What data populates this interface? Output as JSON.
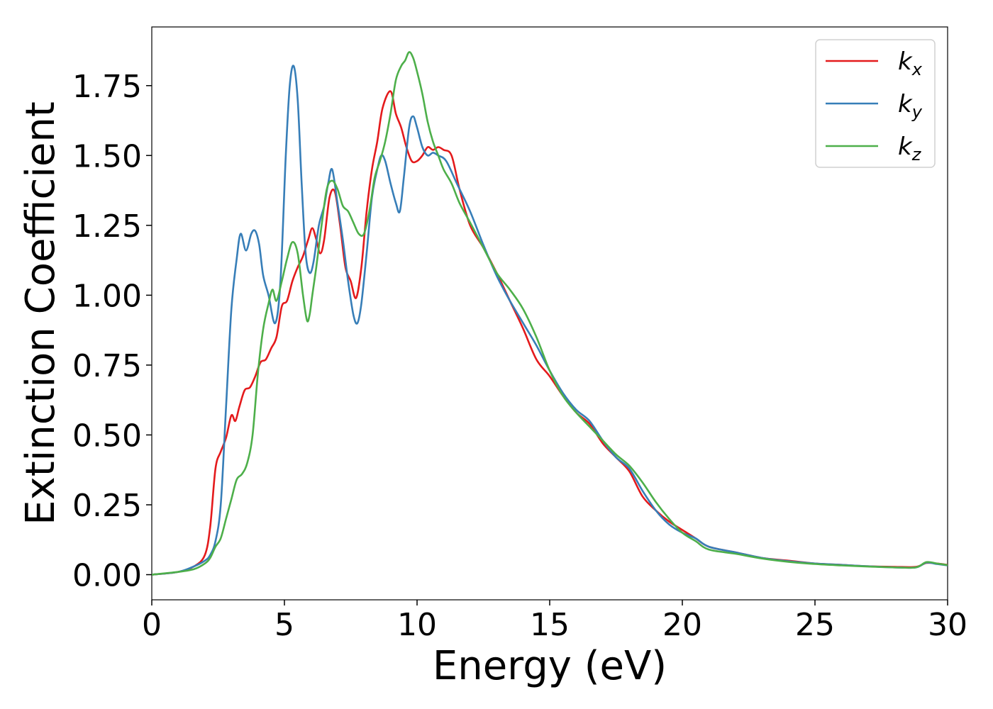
{
  "chart_data": {
    "type": "line",
    "title": "",
    "xlabel": "Energy (eV)",
    "ylabel": "Extinction Coefficient",
    "xlim": [
      0,
      30
    ],
    "ylim": [
      -0.09,
      1.96
    ],
    "xticks": [
      0,
      5,
      10,
      15,
      20,
      25,
      30
    ],
    "xtick_labels": [
      "0",
      "5",
      "10",
      "15",
      "20",
      "25",
      "30"
    ],
    "yticks": [
      0,
      0.25,
      0.5,
      0.75,
      1.0,
      1.25,
      1.5,
      1.75
    ],
    "ytick_labels": [
      "0.00",
      "0.25",
      "0.50",
      "0.75",
      "1.00",
      "1.25",
      "1.50",
      "1.75"
    ],
    "grid": false,
    "legend_position": "top-right",
    "series": [
      {
        "name": "k_x",
        "label_base": "k",
        "label_sub": "x",
        "color": "#e41a1c",
        "x": [
          0,
          1,
          1.6,
          2.0,
          2.2,
          2.4,
          2.6,
          2.8,
          3.0,
          3.15,
          3.3,
          3.5,
          3.7,
          3.9,
          4.1,
          4.3,
          4.5,
          4.7,
          4.9,
          5.1,
          5.3,
          5.5,
          5.7,
          5.9,
          6.05,
          6.2,
          6.35,
          6.5,
          6.7,
          6.9,
          7.1,
          7.3,
          7.5,
          7.7,
          7.9,
          8.1,
          8.3,
          8.5,
          8.7,
          9.0,
          9.2,
          9.4,
          9.6,
          9.8,
          10.0,
          10.2,
          10.4,
          10.6,
          10.8,
          11.0,
          11.3,
          11.6,
          12.0,
          12.5,
          13.0,
          13.5,
          14.0,
          14.5,
          15.0,
          15.5,
          16.0,
          16.5,
          17.0,
          17.5,
          18.0,
          18.5,
          19.0,
          19.5,
          20.0,
          20.5,
          21.0,
          22.0,
          23.0,
          24.0,
          25.0,
          26.0,
          27.0,
          28.0,
          28.8,
          29.2,
          29.6,
          30.0
        ],
        "y": [
          0.0,
          0.01,
          0.03,
          0.07,
          0.17,
          0.38,
          0.44,
          0.49,
          0.57,
          0.55,
          0.6,
          0.66,
          0.67,
          0.71,
          0.76,
          0.77,
          0.81,
          0.85,
          0.96,
          0.98,
          1.05,
          1.1,
          1.14,
          1.2,
          1.24,
          1.2,
          1.15,
          1.2,
          1.35,
          1.37,
          1.25,
          1.1,
          1.05,
          0.99,
          1.1,
          1.3,
          1.45,
          1.55,
          1.67,
          1.73,
          1.65,
          1.6,
          1.53,
          1.48,
          1.48,
          1.5,
          1.53,
          1.52,
          1.53,
          1.52,
          1.5,
          1.38,
          1.25,
          1.17,
          1.08,
          0.98,
          0.88,
          0.77,
          0.71,
          0.64,
          0.58,
          0.54,
          0.47,
          0.42,
          0.37,
          0.28,
          0.23,
          0.19,
          0.16,
          0.13,
          0.1,
          0.08,
          0.06,
          0.05,
          0.04,
          0.035,
          0.03,
          0.028,
          0.028,
          0.042,
          0.04,
          0.035
        ]
      },
      {
        "name": "k_y",
        "label_base": "k",
        "label_sub": "y",
        "color": "#377eb8",
        "x": [
          0,
          1,
          1.6,
          2.0,
          2.2,
          2.4,
          2.6,
          2.8,
          3.0,
          3.2,
          3.35,
          3.55,
          3.75,
          3.9,
          4.05,
          4.2,
          4.4,
          4.65,
          4.85,
          5.05,
          5.2,
          5.35,
          5.5,
          5.65,
          5.8,
          5.95,
          6.1,
          6.3,
          6.5,
          6.65,
          6.8,
          7.0,
          7.2,
          7.4,
          7.6,
          7.75,
          7.9,
          8.1,
          8.3,
          8.5,
          8.65,
          8.8,
          9.0,
          9.2,
          9.35,
          9.5,
          9.7,
          9.85,
          10.0,
          10.2,
          10.4,
          10.6,
          10.8,
          11.1,
          11.5,
          12.0,
          12.5,
          13.0,
          13.5,
          14.0,
          14.5,
          15.0,
          15.5,
          16.0,
          16.5,
          17.0,
          17.5,
          18.0,
          18.5,
          19.0,
          19.5,
          20.0,
          20.5,
          21.0,
          22.0,
          23.0,
          24.0,
          25.0,
          26.0,
          27.0,
          28.0,
          28.8,
          29.2,
          29.6,
          30.0
        ],
        "y": [
          0.0,
          0.01,
          0.03,
          0.05,
          0.07,
          0.12,
          0.25,
          0.6,
          0.95,
          1.13,
          1.22,
          1.16,
          1.22,
          1.23,
          1.18,
          1.07,
          1.0,
          0.9,
          1.05,
          1.5,
          1.75,
          1.82,
          1.7,
          1.4,
          1.15,
          1.08,
          1.12,
          1.25,
          1.32,
          1.4,
          1.45,
          1.33,
          1.2,
          1.05,
          0.93,
          0.9,
          0.97,
          1.15,
          1.35,
          1.45,
          1.5,
          1.48,
          1.4,
          1.33,
          1.3,
          1.42,
          1.6,
          1.64,
          1.6,
          1.53,
          1.5,
          1.51,
          1.5,
          1.48,
          1.4,
          1.3,
          1.18,
          1.07,
          0.98,
          0.9,
          0.82,
          0.73,
          0.65,
          0.59,
          0.55,
          0.48,
          0.42,
          0.38,
          0.3,
          0.23,
          0.18,
          0.15,
          0.13,
          0.1,
          0.08,
          0.06,
          0.048,
          0.04,
          0.035,
          0.03,
          0.026,
          0.026,
          0.043,
          0.038,
          0.033
        ]
      },
      {
        "name": "k_z",
        "label_base": "k",
        "label_sub": "z",
        "color": "#4daf4a",
        "x": [
          0,
          1,
          1.6,
          2.0,
          2.2,
          2.4,
          2.6,
          2.8,
          3.0,
          3.2,
          3.4,
          3.6,
          3.8,
          4.0,
          4.2,
          4.4,
          4.55,
          4.7,
          4.9,
          5.1,
          5.3,
          5.5,
          5.7,
          5.85,
          5.95,
          6.05,
          6.2,
          6.4,
          6.6,
          6.8,
          7.0,
          7.2,
          7.4,
          7.6,
          7.8,
          8.0,
          8.2,
          8.4,
          8.6,
          8.8,
          9.0,
          9.2,
          9.4,
          9.55,
          9.7,
          9.85,
          10.0,
          10.2,
          10.4,
          10.6,
          10.8,
          11.0,
          11.3,
          11.6,
          12.0,
          12.5,
          13.0,
          13.5,
          14.0,
          14.5,
          15.0,
          15.5,
          16.0,
          16.5,
          17.0,
          17.5,
          18.0,
          18.5,
          19.0,
          19.5,
          20.0,
          20.5,
          21.0,
          22.0,
          23.0,
          24.0,
          25.0,
          26.0,
          27.0,
          28.0,
          28.8,
          29.2,
          29.6,
          30.0
        ],
        "y": [
          0.0,
          0.01,
          0.02,
          0.04,
          0.06,
          0.1,
          0.13,
          0.2,
          0.27,
          0.34,
          0.36,
          0.4,
          0.5,
          0.72,
          0.88,
          0.97,
          1.02,
          0.98,
          1.05,
          1.13,
          1.19,
          1.15,
          1.0,
          0.91,
          0.93,
          1.0,
          1.1,
          1.25,
          1.38,
          1.41,
          1.38,
          1.32,
          1.3,
          1.26,
          1.22,
          1.22,
          1.3,
          1.42,
          1.48,
          1.55,
          1.65,
          1.77,
          1.82,
          1.84,
          1.87,
          1.85,
          1.8,
          1.72,
          1.62,
          1.55,
          1.5,
          1.45,
          1.4,
          1.33,
          1.26,
          1.17,
          1.08,
          1.02,
          0.95,
          0.85,
          0.73,
          0.64,
          0.58,
          0.53,
          0.48,
          0.43,
          0.39,
          0.33,
          0.26,
          0.2,
          0.15,
          0.12,
          0.09,
          0.075,
          0.058,
          0.046,
          0.038,
          0.033,
          0.029,
          0.026,
          0.026,
          0.045,
          0.04,
          0.034
        ]
      }
    ]
  }
}
